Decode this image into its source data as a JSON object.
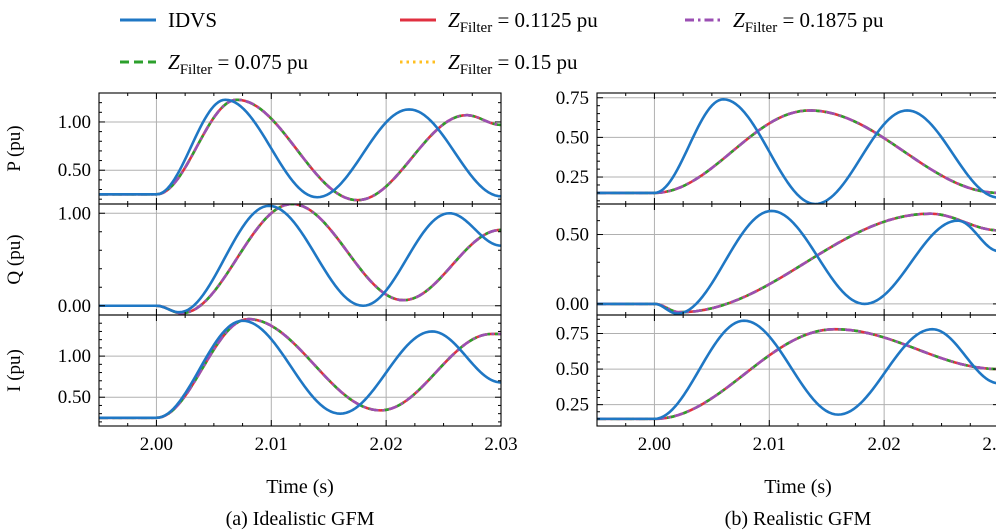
{
  "chart_data": {
    "type": "line",
    "legend": {
      "placement": "top",
      "entries": [
        {
          "id": "idvs",
          "label": "IDVS",
          "sub": "",
          "rest": "",
          "color": "#1f77c4",
          "dash": "solid"
        },
        {
          "id": "z075",
          "label": "Z",
          "sub": "Filter",
          "rest": " = 0.075 pu",
          "color": "#2ca02c",
          "dash": "dashed"
        },
        {
          "id": "z1125",
          "label": "Z",
          "sub": "Filter",
          "rest": " = 0.1125 pu",
          "color": "#e03040",
          "dash": "solid"
        },
        {
          "id": "z15",
          "label": "Z",
          "sub": "Filter",
          "rest": " = 0.15 pu",
          "color": "#ffbf20",
          "dash": "dotted"
        },
        {
          "id": "z1875",
          "label": "Z",
          "sub": "Filter",
          "rest": " = 0.1875 pu",
          "color": "#9b4fb3",
          "dash": "dashdot"
        }
      ]
    },
    "x_range": [
      1.995,
      2.03
    ],
    "x_ticks": [
      2.0,
      2.01,
      2.02,
      2.03
    ],
    "x_tick_labels": [
      "2.00",
      "2.01",
      "2.02",
      "2.03"
    ],
    "xlabel": "Time (s)",
    "columns": [
      {
        "caption": "(a) Idealistic GFM",
        "rows": [
          {
            "ylabel": "P (pu)",
            "ylim": [
              0.15,
              1.3
            ],
            "yticks": [
              0.5,
              1.0
            ],
            "ytick_labels": [
              "0.50",
              "1.00"
            ],
            "series": {
              "idvs": {
                "x": [
                  1.995,
                  2.0,
                  2.006,
                  2.014,
                  2.022,
                  2.03
                ],
                "y": [
                  0.25,
                  0.25,
                  1.23,
                  0.22,
                  1.13,
                  0.23
                ]
              },
              "filter": {
                "x": [
                  1.995,
                  2.0,
                  2.007,
                  2.0175,
                  2.027,
                  2.03
                ],
                "y": [
                  0.25,
                  0.25,
                  1.23,
                  0.19,
                  1.07,
                  0.97
                ]
              }
            }
          },
          {
            "ylabel": "Q (pu)",
            "ylim": [
              -0.1,
              1.1
            ],
            "yticks": [
              0.0,
              1.0
            ],
            "ytick_labels": [
              "0.00",
              "1.00"
            ],
            "series": {
              "idvs": {
                "x": [
                  1.995,
                  2.0,
                  2.002,
                  2.0098,
                  2.018,
                  2.0255,
                  2.03
                ],
                "y": [
                  0.0,
                  0.0,
                  -0.07,
                  1.08,
                  0.0,
                  1.0,
                  0.65
                ]
              },
              "filter": {
                "x": [
                  1.995,
                  2.0,
                  2.0022,
                  2.0118,
                  2.0215,
                  2.03
                ],
                "y": [
                  0.0,
                  0.0,
                  -0.08,
                  1.1,
                  0.06,
                  0.82
                ]
              }
            }
          },
          {
            "ylabel": "I (pu)",
            "ylim": [
              0.15,
              1.5
            ],
            "yticks": [
              0.5,
              1.0
            ],
            "ytick_labels": [
              "0.50",
              "1.00"
            ],
            "series": {
              "idvs": {
                "x": [
                  1.995,
                  2.0,
                  2.0075,
                  2.016,
                  2.024,
                  2.03
                ],
                "y": [
                  0.25,
                  0.25,
                  1.43,
                  0.3,
                  1.3,
                  0.68
                ]
              },
              "filter": {
                "x": [
                  1.995,
                  2.0,
                  2.008,
                  2.0195,
                  2.0292,
                  2.03
                ],
                "y": [
                  0.25,
                  0.25,
                  1.45,
                  0.34,
                  1.27,
                  1.27
                ]
              }
            }
          }
        ]
      },
      {
        "caption": "(b) Realistic GFM",
        "rows": [
          {
            "ylabel": "",
            "ylim": [
              0.08,
              0.78
            ],
            "yticks": [
              0.25,
              0.5,
              0.75
            ],
            "ytick_labels": [
              "0.25",
              "0.50",
              "0.75"
            ],
            "series": {
              "idvs": {
                "x": [
                  1.995,
                  2.0,
                  2.006,
                  2.014,
                  2.022,
                  2.03
                ],
                "y": [
                  0.15,
                  0.15,
                  0.74,
                  0.08,
                  0.67,
                  0.12
                ]
              },
              "filter": {
                "x": [
                  1.995,
                  2.0,
                  2.0135,
                  2.03
                ],
                "y": [
                  0.15,
                  0.15,
                  0.67,
                  0.15
                ]
              }
            }
          },
          {
            "ylabel": "",
            "ylim": [
              -0.08,
              0.72
            ],
            "yticks": [
              0.0,
              0.5
            ],
            "ytick_labels": [
              "0.00",
              "0.50"
            ],
            "series": {
              "idvs": {
                "x": [
                  1.995,
                  2.0,
                  2.002,
                  2.0102,
                  2.0183,
                  2.0264,
                  2.03
                ],
                "y": [
                  0.0,
                  0.0,
                  -0.07,
                  0.67,
                  0.0,
                  0.6,
                  0.38
                ]
              },
              "filter": {
                "x": [
                  1.995,
                  2.0,
                  2.0022,
                  2.024,
                  2.03
                ],
                "y": [
                  0.0,
                  0.0,
                  -0.06,
                  0.65,
                  0.53
                ]
              }
            }
          },
          {
            "ylabel": "",
            "ylim": [
              0.1,
              0.88
            ],
            "yticks": [
              0.25,
              0.5,
              0.75
            ],
            "ytick_labels": [
              "0.25",
              "0.50",
              "0.75"
            ],
            "series": {
              "idvs": {
                "x": [
                  1.995,
                  2.0,
                  2.0078,
                  2.016,
                  2.0242,
                  2.03
                ],
                "y": [
                  0.15,
                  0.15,
                  0.84,
                  0.18,
                  0.78,
                  0.4
                ]
              },
              "filter": {
                "x": [
                  1.995,
                  2.0,
                  2.0157,
                  2.03
                ],
                "y": [
                  0.15,
                  0.15,
                  0.78,
                  0.5
                ]
              }
            }
          }
        ]
      }
    ]
  }
}
